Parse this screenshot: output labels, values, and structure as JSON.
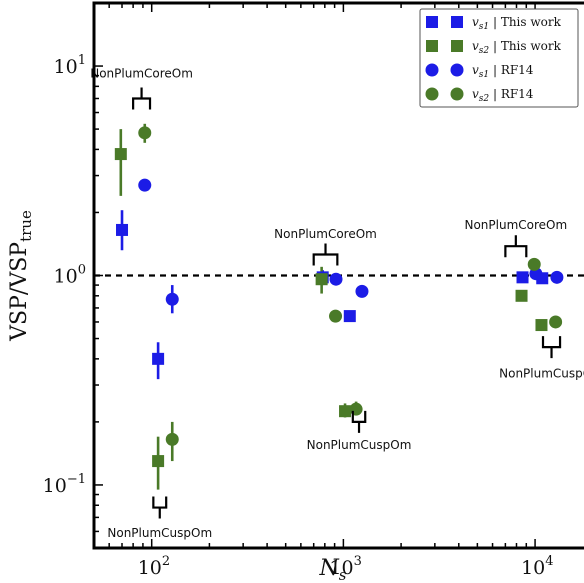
{
  "chart_data": {
    "type": "scatter",
    "xlabel": "N",
    "xlabel_sub": "s",
    "ylabel": "VSP/VSP",
    "ylabel_sub": "true",
    "x_scale": "log",
    "y_scale": "log",
    "xlim": [
      50,
      18000
    ],
    "ylim": [
      0.05,
      20
    ],
    "x_ticks": [
      {
        "value": 100,
        "base": "10",
        "exp": "2"
      },
      {
        "value": 1000,
        "base": "10",
        "exp": "3"
      },
      {
        "value": 10000,
        "base": "10",
        "exp": "4"
      }
    ],
    "y_ticks": [
      {
        "value": 0.1,
        "base": "10",
        "exp": "−1"
      },
      {
        "value": 1,
        "base": "10",
        "exp": "0"
      },
      {
        "value": 10,
        "base": "10",
        "exp": "1"
      }
    ],
    "reference_line": {
      "y": 1,
      "style": "dashed",
      "color": "#000000"
    },
    "series": [
      {
        "name": "v_s1 | This work",
        "legend_var": "v",
        "legend_sub": "s1",
        "legend_suffix": "| This work",
        "marker": "square",
        "color": "#1c1ce6",
        "points": [
          {
            "x": 70,
            "y": 1.65,
            "ylo": 1.32,
            "yhi": 2.05
          },
          {
            "x": 108,
            "y": 0.4,
            "ylo": 0.32,
            "yhi": 0.48
          },
          {
            "x": 780,
            "y": 0.98,
            "ylo": 0.9,
            "yhi": 1.06
          },
          {
            "x": 1080,
            "y": 0.64
          },
          {
            "x": 8600,
            "y": 0.98
          },
          {
            "x": 10900,
            "y": 0.97
          }
        ]
      },
      {
        "name": "v_s2 | This work",
        "legend_var": "v",
        "legend_sub": "s2",
        "legend_suffix": "| This work",
        "marker": "square",
        "color": "#4a7a28",
        "points": [
          {
            "x": 69,
            "y": 3.8,
            "ylo": 2.4,
            "yhi": 5.0
          },
          {
            "x": 108,
            "y": 0.13,
            "ylo": 0.095,
            "yhi": 0.17
          },
          {
            "x": 770,
            "y": 0.96,
            "ylo": 0.82,
            "yhi": 1.1
          },
          {
            "x": 1020,
            "y": 0.225,
            "ylo": 0.21,
            "yhi": 0.245
          },
          {
            "x": 8500,
            "y": 0.8
          },
          {
            "x": 10800,
            "y": 0.58
          }
        ]
      },
      {
        "name": "v_s1 | RF14",
        "legend_var": "v",
        "legend_sub": "s1",
        "legend_suffix": "| RF14",
        "marker": "circle",
        "color": "#1c1ce6",
        "points": [
          {
            "x": 92,
            "y": 2.7
          },
          {
            "x": 128,
            "y": 0.77,
            "ylo": 0.66,
            "yhi": 0.9
          },
          {
            "x": 915,
            "y": 0.96
          },
          {
            "x": 1250,
            "y": 0.84
          },
          {
            "x": 10100,
            "y": 1.02
          },
          {
            "x": 13000,
            "y": 0.98
          }
        ]
      },
      {
        "name": "v_s2 | RF14",
        "legend_var": "v",
        "legend_sub": "s2",
        "legend_suffix": "| RF14",
        "marker": "circle",
        "color": "#4a7a28",
        "points": [
          {
            "x": 92,
            "y": 4.8,
            "ylo": 4.3,
            "yhi": 5.3
          },
          {
            "x": 128,
            "y": 0.165,
            "ylo": 0.13,
            "yhi": 0.2
          },
          {
            "x": 910,
            "y": 0.64
          },
          {
            "x": 1165,
            "y": 0.23,
            "ylo": 0.215,
            "yhi": 0.25
          },
          {
            "x": 9900,
            "y": 1.13
          },
          {
            "x": 12800,
            "y": 0.6
          }
        ]
      }
    ],
    "annotations": [
      {
        "text": "NonPlumCoreOm",
        "bracket_x": [
          80,
          98
        ],
        "bracket_y": 7.0,
        "direction": "up",
        "label_y": 9.2
      },
      {
        "text": "NonPlumCuspOm",
        "bracket_x": [
          102,
          119
        ],
        "bracket_y": 0.078,
        "direction": "down",
        "label_y": 0.059
      },
      {
        "text": "NonPlumCoreOm",
        "bracket_x": [
          700,
          930
        ],
        "bracket_y": 1.26,
        "direction": "up",
        "label_y": 1.58
      },
      {
        "text": "NonPlumCuspOm",
        "bracket_x": [
          1120,
          1300
        ],
        "bracket_y": 0.2,
        "direction": "down",
        "label_y": 0.155
      },
      {
        "text": "NonPlumCoreOm",
        "bracket_x": [
          7000,
          9000
        ],
        "bracket_y": 1.38,
        "direction": "up",
        "label_y": 1.74
      },
      {
        "text": "NonPlumCuspOm",
        "bracket_x": [
          11000,
          13500
        ],
        "bracket_y": 0.455,
        "direction": "down",
        "label_y": 0.34
      }
    ],
    "legend_position": "top-right"
  }
}
